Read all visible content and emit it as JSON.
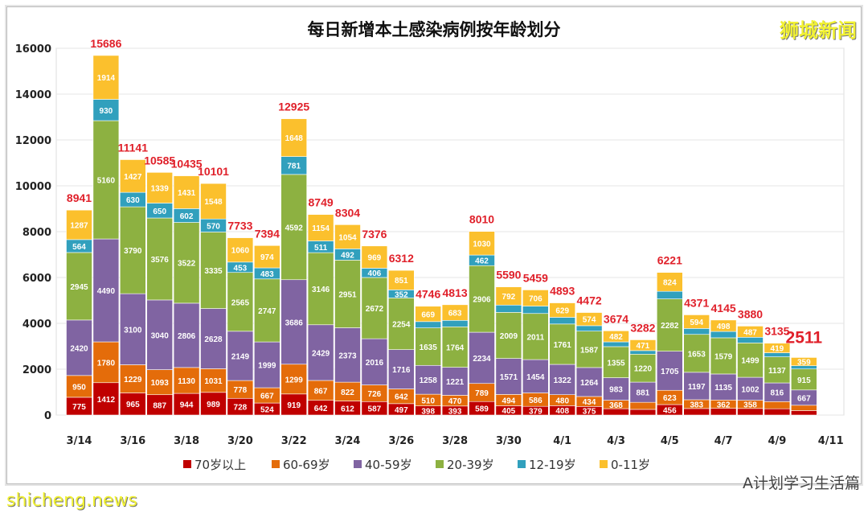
{
  "chart_data": {
    "type": "bar",
    "stacked": true,
    "title": "每日新增本土感染病例按年龄划分",
    "xlabel": "",
    "ylabel": "",
    "ylim": [
      0,
      16000
    ],
    "yticks": [
      0,
      2000,
      4000,
      6000,
      8000,
      10000,
      12000,
      14000,
      16000
    ],
    "grid": true,
    "legend_position": "bottom",
    "categories": [
      "3/14",
      "3/15",
      "3/16",
      "3/17",
      "3/18",
      "3/19",
      "3/20",
      "3/21",
      "3/22",
      "3/23",
      "3/24",
      "3/25",
      "3/26",
      "3/27",
      "3/28",
      "3/29",
      "3/30",
      "3/31",
      "4/1",
      "4/2",
      "4/3",
      "4/4",
      "4/5",
      "4/6",
      "4/7",
      "4/8",
      "4/9",
      "4/10"
    ],
    "xtick_labels": [
      "3/14",
      "3/16",
      "3/18",
      "3/20",
      "3/22",
      "3/24",
      "3/26",
      "3/28",
      "3/30",
      "4/1",
      "4/3",
      "4/5",
      "4/7",
      "4/9",
      "4/11"
    ],
    "totals": [
      8941,
      15686,
      11141,
      10585,
      10435,
      10101,
      7733,
      7394,
      12925,
      8749,
      8304,
      7376,
      6312,
      4746,
      4813,
      8010,
      5590,
      5459,
      4893,
      4472,
      3674,
      3282,
      6221,
      4371,
      4145,
      3880,
      3135,
      2511
    ],
    "series": [
      {
        "name": "70岁以上",
        "color": "#c00000",
        "values": [
          775,
          1412,
          965,
          887,
          944,
          989,
          728,
          524,
          919,
          642,
          612,
          587,
          497,
          398,
          393,
          589,
          405,
          379,
          408,
          375,
          278,
          247,
          456,
          285,
          294,
          287,
          274,
          193
        ]
      },
      {
        "name": "60-69岁",
        "color": "#e46c0a",
        "values": [
          950,
          1780,
          1229,
          1093,
          1130,
          1031,
          778,
          667,
          1299,
          867,
          822,
          726,
          642,
          510,
          470,
          789,
          494,
          586,
          480,
          434,
          368,
          308,
          623,
          383,
          362,
          358,
          312,
          235
        ]
      },
      {
        "name": "40-59岁",
        "color": "#8064a2",
        "values": [
          2420,
          4490,
          3100,
          3040,
          2806,
          2628,
          2149,
          1999,
          3686,
          2429,
          2373,
          2016,
          1716,
          1258,
          1221,
          2234,
          1571,
          1454,
          1322,
          1264,
          983,
          881,
          1705,
          1197,
          1135,
          1002,
          816,
          667
        ]
      },
      {
        "name": "20-39岁",
        "color": "#8db141",
        "values": [
          2945,
          5160,
          3790,
          3576,
          3522,
          3335,
          2565,
          2747,
          4592,
          3146,
          2951,
          2672,
          2254,
          1635,
          1764,
          2906,
          2009,
          2011,
          1761,
          1587,
          1355,
          1220,
          2282,
          1653,
          1579,
          1499,
          1137,
          915
        ]
      },
      {
        "name": "12-19岁",
        "color": "#31a0bd",
        "values": [
          564,
          930,
          630,
          650,
          602,
          570,
          453,
          483,
          781,
          511,
          492,
          406,
          352,
          276,
          282,
          462,
          319,
          323,
          293,
          238,
          208,
          155,
          331,
          259,
          277,
          247,
          177,
          142
        ]
      },
      {
        "name": "0-11岁",
        "color": "#fbc02d",
        "values": [
          1287,
          1914,
          1427,
          1339,
          1431,
          1548,
          1060,
          974,
          1648,
          1154,
          1054,
          969,
          851,
          669,
          683,
          1030,
          792,
          706,
          629,
          574,
          482,
          471,
          824,
          594,
          498,
          487,
          419,
          359
        ]
      }
    ]
  },
  "watermarks": {
    "top_right": "狮城新闻",
    "bottom_left": "shicheng.news",
    "bottom_right": "A计划学习生活篇"
  }
}
